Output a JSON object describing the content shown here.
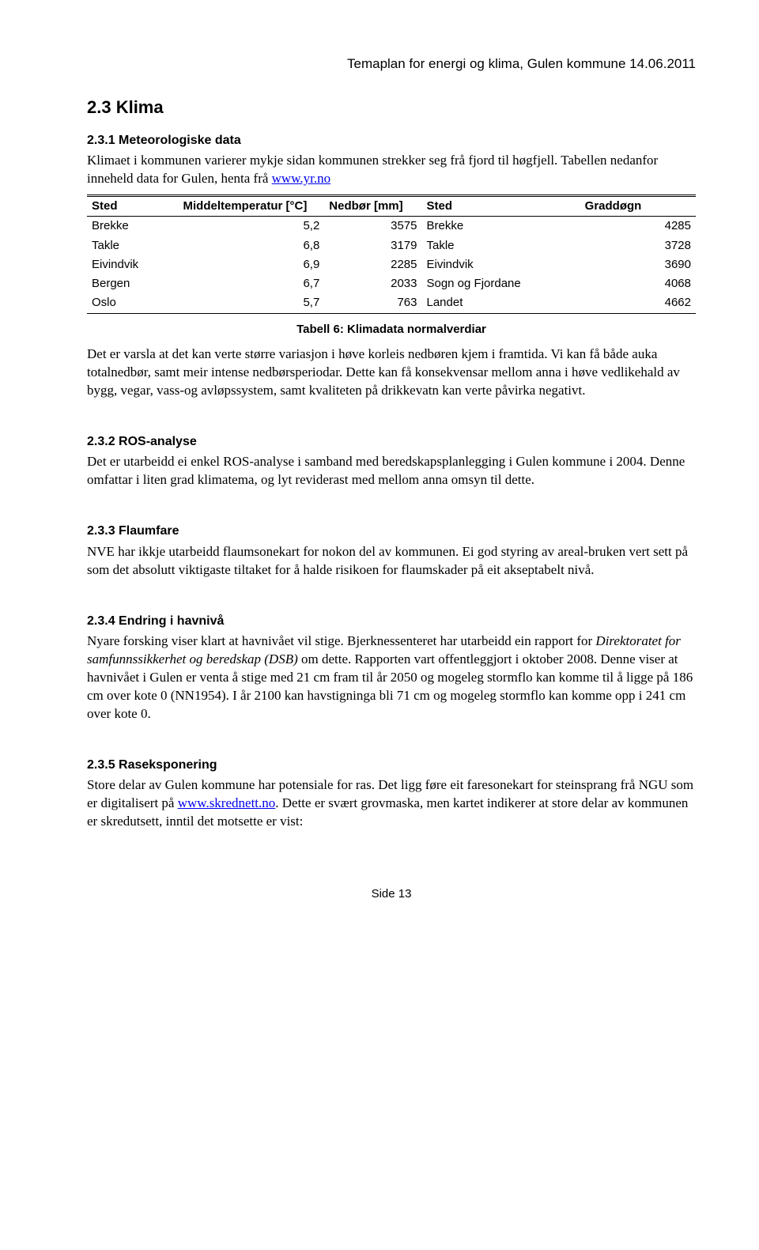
{
  "header": "Temaplan for energi og klima, Gulen kommune 14.06.2011",
  "h2": "2.3  Klima",
  "s231": {
    "title": "2.3.1  Meteorologiske data",
    "intro_pre": "Klimaet i kommunen varierer mykje sidan kommunen strekker seg frå fjord til høgfjell. Tabellen nedanfor inneheld data for Gulen, henta frå ",
    "intro_link": "www.yr.no",
    "table": {
      "headers": [
        "Sted",
        "Middeltemperatur [°C]",
        "Nedbør [mm]",
        "Sted",
        "Graddøgn"
      ],
      "rows": [
        [
          "Brekke",
          "5,2",
          "3575",
          "Brekke",
          "4285"
        ],
        [
          "Takle",
          "6,8",
          "3179",
          "Takle",
          "3728"
        ],
        [
          "Eivindvik",
          "6,9",
          "2285",
          "Eivindvik",
          "3690"
        ],
        [
          "Bergen",
          "6,7",
          "2033",
          "Sogn og Fjordane",
          "4068"
        ],
        [
          "Oslo",
          "5,7",
          "763",
          "Landet",
          "4662"
        ]
      ],
      "col_widths": [
        "15%",
        "24%",
        "16%",
        "26%",
        "19%"
      ]
    },
    "caption": "Tabell 6: Klimadata normalverdiar",
    "para": "Det er varsla at det kan verte større variasjon i høve korleis nedbøren kjem i framtida. Vi kan få både auka totalnedbør, samt meir intense nedbørsperiodar. Dette kan få konsekvensar mellom anna i høve vedlikehald av bygg, vegar,  vass-og avløpssystem, samt kvaliteten på drikkevatn kan verte påvirka negativt."
  },
  "s232": {
    "title": "2.3.2  ROS-analyse",
    "para": "Det er utarbeidd ei enkel ROS-analyse i samband med beredskapsplanlegging i Gulen kommune i 2004. Denne omfattar i liten grad klimatema, og lyt reviderast med mellom anna omsyn til dette."
  },
  "s233": {
    "title": "2.3.3  Flaumfare",
    "para": "NVE har ikkje utarbeidd flaumsonekart for nokon del av kommunen. Ei god styring av areal-bruken vert sett på som det absolutt viktigaste tiltaket for å halde risikoen for flaumskader på eit akseptabelt nivå."
  },
  "s234": {
    "title": "2.3.4  Endring i havnivå",
    "para_pre": "Nyare forsking viser klart at havnivået vil stige. Bjerknessenteret har utarbeidd ein rapport for ",
    "para_italic": "Direktoratet for samfunnssikkerhet og beredskap (DSB)",
    "para_post": " om dette. Rapporten vart offentleggjort i oktober 2008. Denne viser at havnivået i Gulen er venta å stige med 21 cm fram til år 2050 og mogeleg stormflo kan komme til å ligge på 186 cm over kote 0 (NN1954). I år 2100 kan havstigninga bli 71 cm og mogeleg stormflo kan komme opp i 241 cm over kote 0."
  },
  "s235": {
    "title": "2.3.5  Raseksponering",
    "para_pre": "Store delar av Gulen kommune har potensiale for ras. Det ligg føre eit faresonekart for steinsprang frå NGU som er digitalisert på ",
    "para_link": "www.skrednett.no",
    "para_post": ". Dette er svært grovmaska, men kartet indikerer at store delar av kommunen er skredutsett, inntil det motsette er vist:"
  },
  "footer": "Side 13"
}
